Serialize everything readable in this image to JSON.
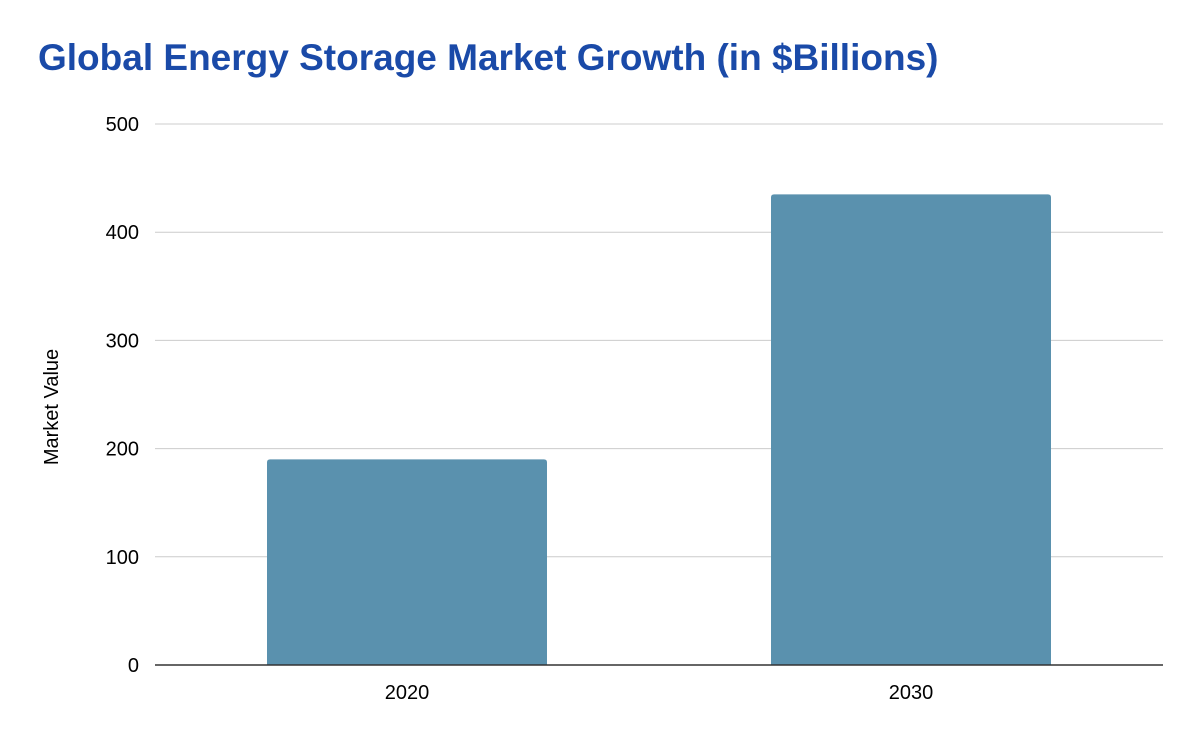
{
  "chart_data": {
    "type": "bar",
    "title": "Global Energy Storage Market Growth (in $Billions)",
    "xlabel": "",
    "ylabel": "Market Value",
    "categories": [
      "2020",
      "2030"
    ],
    "values": [
      190,
      435
    ],
    "ylim": [
      0,
      500
    ],
    "yticks": [
      "0",
      "100",
      "200",
      "300",
      "400",
      "500"
    ],
    "grid": true,
    "legend": "none",
    "colors": {
      "title": "#1a4aa8",
      "bar": "#5a91ae",
      "grid": "#cccccc",
      "baseline": "#333333"
    }
  }
}
